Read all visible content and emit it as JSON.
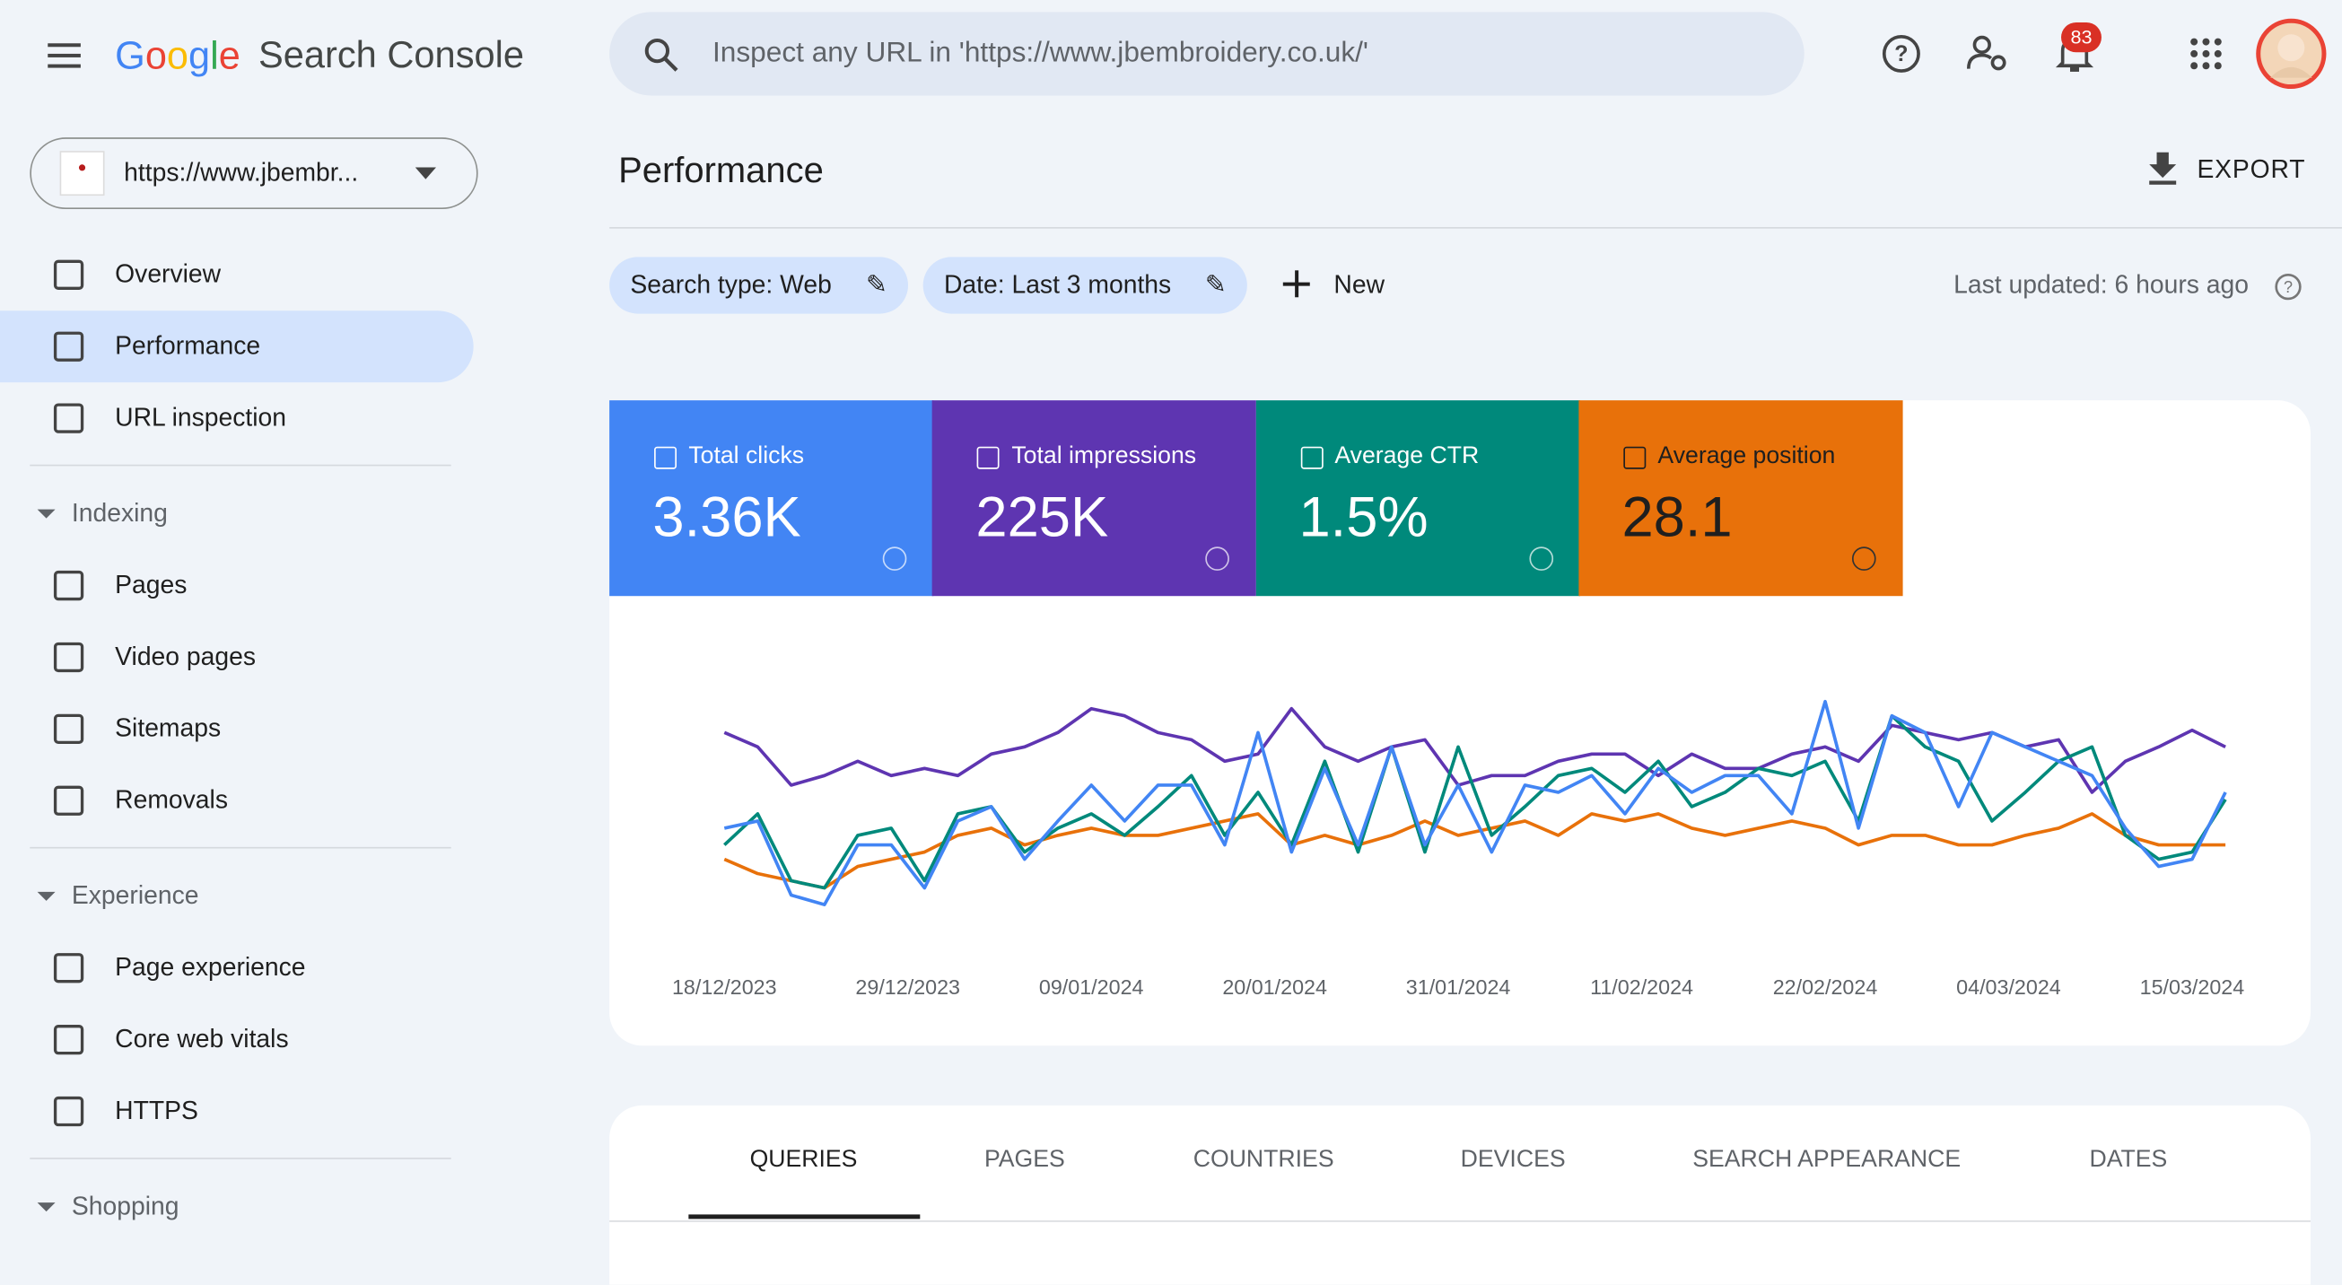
{
  "header": {
    "product": "Search Console",
    "logo": "Google",
    "search_placeholder": "Inspect any URL in 'https://www.jbembroidery.co.uk/'",
    "notifications": "83"
  },
  "property": "https://www.jbembr...",
  "nav": {
    "items": [
      "Overview",
      "Performance",
      "URL inspection"
    ],
    "sections": [
      {
        "title": "Indexing",
        "items": [
          "Pages",
          "Video pages",
          "Sitemaps",
          "Removals"
        ]
      },
      {
        "title": "Experience",
        "items": [
          "Page experience",
          "Core web vitals",
          "HTTPS"
        ]
      },
      {
        "title": "Shopping",
        "items": []
      }
    ]
  },
  "page_title": "Performance",
  "export": "EXPORT",
  "filters": [
    "Search type: Web",
    "Date: Last 3 months"
  ],
  "new": "New",
  "last_updated": "Last updated: 6 hours ago",
  "chart_data": {
    "type": "line",
    "x": [
      0,
      2,
      4,
      6,
      8,
      10,
      12,
      14,
      16,
      18,
      20,
      22,
      24,
      26,
      28,
      30,
      32,
      34,
      36,
      38,
      40,
      42,
      44,
      46,
      48,
      50,
      52,
      54,
      56,
      58,
      60,
      62,
      64,
      66,
      68,
      70,
      72,
      74,
      76,
      78,
      80,
      82,
      84,
      86,
      88,
      90
    ],
    "xlim": [
      0,
      90
    ],
    "xticks": [
      {
        "value": 0,
        "label": "18/12/2023"
      },
      {
        "value": 11,
        "label": "29/12/2023"
      },
      {
        "value": 22,
        "label": "09/01/2024"
      },
      {
        "value": 33,
        "label": "20/01/2024"
      },
      {
        "value": 44,
        "label": "31/01/2024"
      },
      {
        "value": 55,
        "label": "11/02/2024"
      },
      {
        "value": 66,
        "label": "22/02/2024"
      },
      {
        "value": 77,
        "label": "04/03/2024"
      },
      {
        "value": 88,
        "label": "15/03/2024"
      }
    ],
    "ylim": [
      0,
      100
    ],
    "series": [
      {
        "name": "Total clicks",
        "total": "3.36K",
        "color": "#4285f4",
        "values": [
          41,
          44,
          13,
          9,
          34,
          34,
          16,
          44,
          50,
          28,
          44,
          59,
          44,
          59,
          59,
          34,
          81,
          31,
          66,
          34,
          75,
          34,
          59,
          31,
          59,
          56,
          63,
          47,
          66,
          56,
          63,
          63,
          47,
          94,
          41,
          88,
          81,
          50,
          81,
          75,
          69,
          63,
          41,
          25,
          28,
          56
        ]
      },
      {
        "name": "Total impressions",
        "total": "225K",
        "color": "#5e35b1",
        "values": [
          81,
          75,
          59,
          63,
          69,
          63,
          66,
          63,
          72,
          75,
          81,
          91,
          88,
          81,
          78,
          69,
          72,
          91,
          75,
          69,
          75,
          78,
          59,
          63,
          63,
          69,
          72,
          72,
          63,
          72,
          66,
          66,
          72,
          75,
          69,
          84,
          81,
          78,
          81,
          75,
          78,
          56,
          69,
          75,
          82,
          75
        ]
      },
      {
        "name": "Average CTR",
        "total": "1.5%",
        "color": "#00897b",
        "values": [
          34,
          47,
          19,
          16,
          38,
          41,
          19,
          47,
          50,
          31,
          41,
          47,
          38,
          50,
          63,
          38,
          56,
          34,
          69,
          31,
          75,
          31,
          75,
          38,
          50,
          63,
          66,
          56,
          69,
          50,
          56,
          66,
          63,
          69,
          44,
          88,
          75,
          69,
          44,
          56,
          69,
          75,
          38,
          28,
          31,
          53
        ]
      },
      {
        "name": "Average position",
        "total": "28.1",
        "color": "#e8710a",
        "values": [
          28,
          22,
          19,
          16,
          25,
          28,
          31,
          38,
          41,
          34,
          38,
          41,
          38,
          38,
          41,
          44,
          47,
          34,
          38,
          34,
          38,
          44,
          38,
          41,
          44,
          38,
          47,
          44,
          47,
          41,
          38,
          41,
          44,
          41,
          34,
          38,
          38,
          34,
          34,
          38,
          41,
          47,
          38,
          34,
          34,
          34
        ]
      }
    ]
  },
  "tabs": [
    "QUERIES",
    "PAGES",
    "COUNTRIES",
    "DEVICES",
    "SEARCH APPEARANCE",
    "DATES"
  ]
}
